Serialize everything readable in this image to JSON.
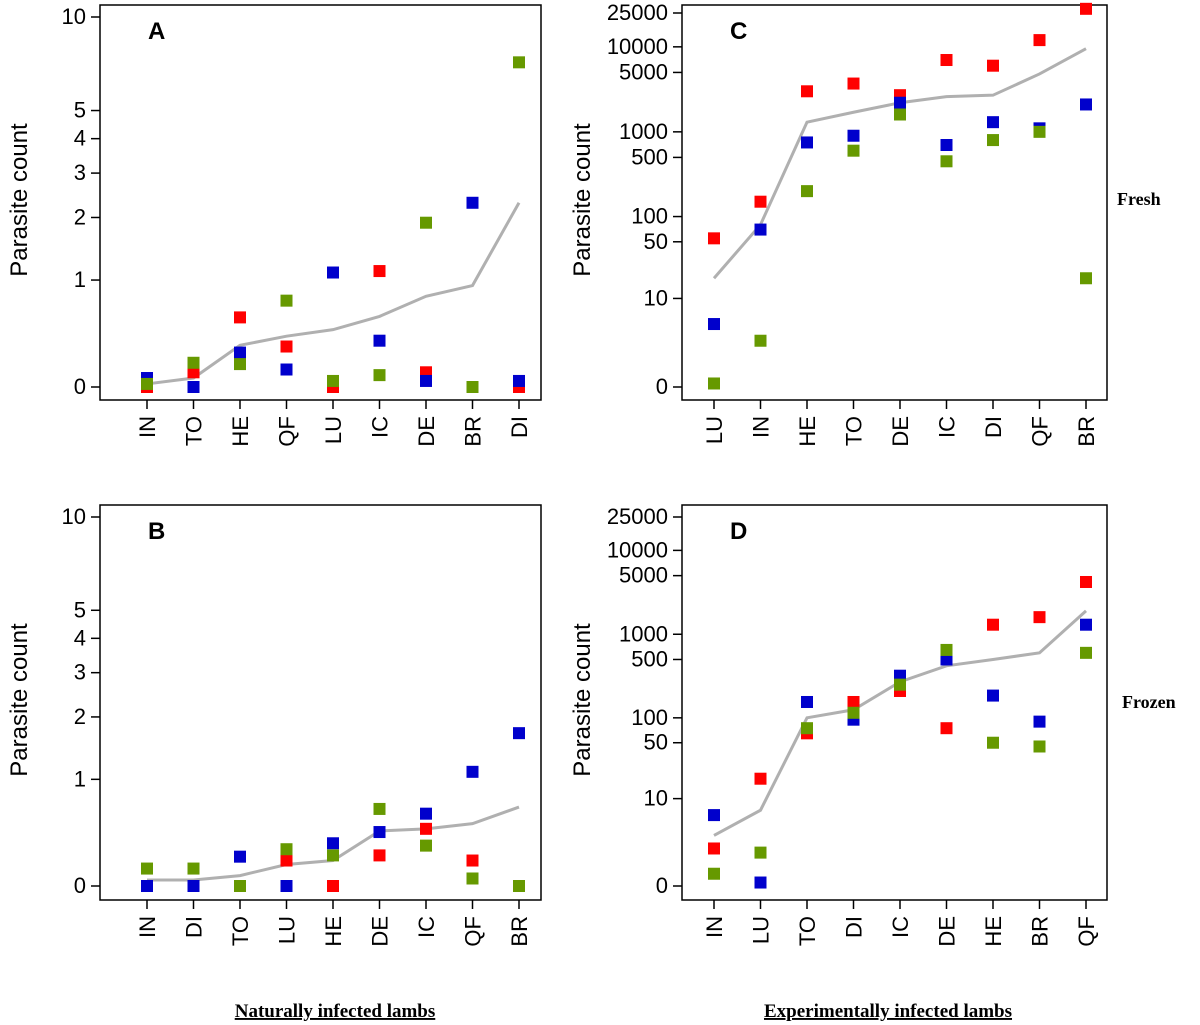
{
  "colors": {
    "red": "#ff0000",
    "blue": "#0000cc",
    "green": "#669900",
    "line": "#b0b0b0"
  },
  "labels": {
    "fresh": "Fresh",
    "frozen": "Frozen",
    "natural_caption": "Naturally infected lambs",
    "experimental_caption": "Experimentally infected lambs"
  },
  "chart_data": [
    {
      "id": "A",
      "type": "scatter",
      "scale": "log1p",
      "ylabel": "Parasite count",
      "yticks": [
        0,
        1,
        2,
        3,
        4,
        5,
        10
      ],
      "ylim": [
        0,
        10
      ],
      "categories": [
        "IN",
        "TO",
        "HE",
        "QF",
        "LU",
        "IC",
        "DE",
        "BR",
        "DI"
      ],
      "series": [
        {
          "name": "red",
          "values": [
            0,
            0.1,
            0.57,
            0.3,
            0,
            1.12,
            0.1,
            0,
            0
          ]
        },
        {
          "name": "blue",
          "values": [
            0.06,
            0,
            0.25,
            0.12,
            1.1,
            0.35,
            0.04,
            2.3,
            0.04
          ]
        },
        {
          "name": "green",
          "values": [
            0.02,
            0.17,
            0.16,
            0.75,
            0.04,
            0.08,
            1.9,
            0,
            7.2
          ]
        },
        {
          "name": "mean",
          "values": [
            0.02,
            0.06,
            0.31,
            0.39,
            0.45,
            0.58,
            0.8,
            0.93,
            2.3
          ]
        }
      ]
    },
    {
      "id": "B",
      "type": "scatter",
      "scale": "log1p",
      "ylabel": "Parasite count",
      "yticks": [
        0,
        1,
        2,
        3,
        4,
        5,
        10
      ],
      "ylim": [
        0,
        10
      ],
      "categories": [
        "IN",
        "DI",
        "TO",
        "LU",
        "HE",
        "DE",
        "IC",
        "QF",
        "BR"
      ],
      "series": [
        {
          "name": "red",
          "values": [
            0,
            0,
            0,
            0.18,
            0,
            0.22,
            0.45,
            0.18,
            0
          ]
        },
        {
          "name": "blue",
          "values": [
            0,
            0,
            0.21,
            0,
            0.32,
            0.42,
            0.6,
            1.1,
            1.7
          ]
        },
        {
          "name": "green",
          "values": [
            0.12,
            0.12,
            0,
            0.27,
            0.22,
            0.65,
            0.3,
            0.05,
            0
          ]
        },
        {
          "name": "mean",
          "values": [
            0.04,
            0.04,
            0.07,
            0.15,
            0.18,
            0.43,
            0.45,
            0.5,
            0.67
          ]
        }
      ]
    },
    {
      "id": "C",
      "type": "scatter",
      "scale": "log1p",
      "ylabel": "Parasite count",
      "yticks": [
        0,
        10,
        50,
        100,
        500,
        1000,
        5000,
        10000,
        25000
      ],
      "ylim": [
        0,
        25000
      ],
      "categories": [
        "LU",
        "IN",
        "HE",
        "TO",
        "DE",
        "IC",
        "DI",
        "QF",
        "BR"
      ],
      "series": [
        {
          "name": "red",
          "values": [
            55,
            150,
            3000,
            3700,
            2700,
            7000,
            6000,
            12000,
            28000
          ]
        },
        {
          "name": "blue",
          "values": [
            4.5,
            70,
            750,
            900,
            2200,
            700,
            1300,
            1100,
            2100
          ]
        },
        {
          "name": "green",
          "values": [
            0.1,
            2.5,
            200,
            600,
            1600,
            450,
            800,
            1000,
            18
          ]
        },
        {
          "name": "mean",
          "values": [
            18,
            80,
            1300,
            1700,
            2200,
            2600,
            2700,
            4800,
            9500
          ]
        }
      ]
    },
    {
      "id": "D",
      "type": "scatter",
      "scale": "log1p",
      "ylabel": "Parasite count",
      "yticks": [
        0,
        10,
        50,
        100,
        500,
        1000,
        5000,
        10000,
        25000
      ],
      "ylim": [
        0,
        25000
      ],
      "categories": [
        "IN",
        "LU",
        "TO",
        "DI",
        "IC",
        "DE",
        "HE",
        "BR",
        "QF"
      ],
      "series": [
        {
          "name": "red",
          "values": [
            1.8,
            18,
            65,
            155,
            210,
            75,
            1300,
            1600,
            4200
          ]
        },
        {
          "name": "blue",
          "values": [
            6,
            0.1,
            155,
            95,
            320,
            500,
            185,
            90,
            1300
          ]
        },
        {
          "name": "green",
          "values": [
            0.4,
            1.5,
            75,
            115,
            250,
            650,
            50,
            45,
            600
          ]
        },
        {
          "name": "mean",
          "values": [
            3,
            7,
            100,
            125,
            270,
            420,
            500,
            600,
            1900
          ]
        }
      ]
    }
  ]
}
